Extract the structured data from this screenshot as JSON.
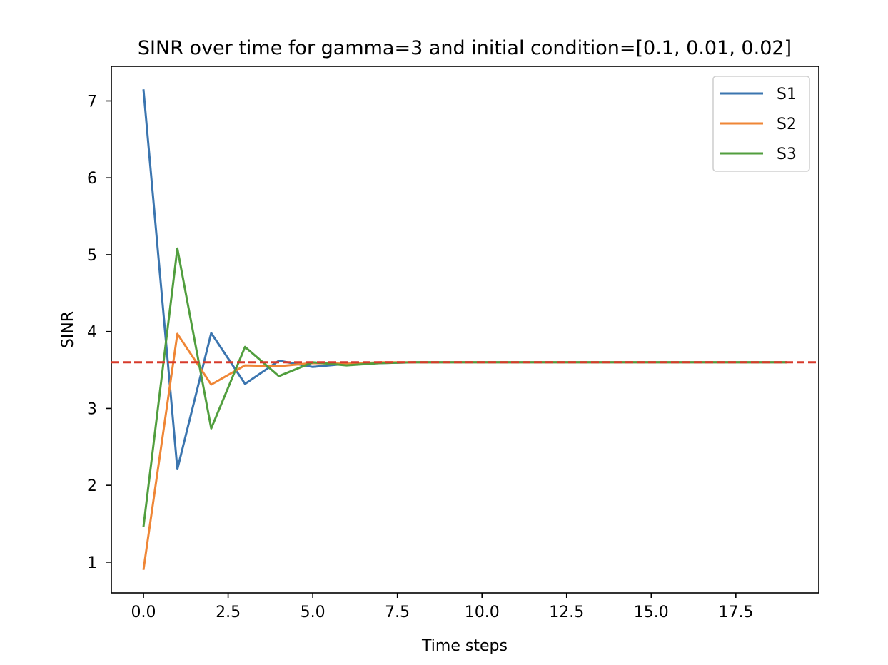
{
  "chart_data": {
    "type": "line",
    "title": "SINR over time for gamma=3 and initial condition=[0.1, 0.01, 0.02]",
    "xlabel": "Time steps",
    "ylabel": "SINR",
    "xlim": [
      -0.95,
      19.95
    ],
    "ylim": [
      0.6,
      7.45
    ],
    "xticks": [
      0.0,
      2.5,
      5.0,
      7.5,
      10.0,
      12.5,
      15.0,
      17.5
    ],
    "xtick_labels": [
      "0.0",
      "2.5",
      "5.0",
      "7.5",
      "10.0",
      "12.5",
      "15.0",
      "17.5"
    ],
    "yticks": [
      1,
      2,
      3,
      4,
      5,
      6,
      7
    ],
    "ytick_labels": [
      "1",
      "2",
      "3",
      "4",
      "5",
      "6",
      "7"
    ],
    "grid": false,
    "legend_position": "top-right",
    "x": [
      0,
      1,
      2,
      3,
      4,
      5,
      6,
      7,
      8,
      9,
      10,
      11,
      12,
      13,
      14,
      15,
      16,
      17,
      18,
      19
    ],
    "series": [
      {
        "name": "S1",
        "color": "#3b75af",
        "values": [
          7.15,
          2.21,
          3.98,
          3.32,
          3.62,
          3.54,
          3.58,
          3.59,
          3.6,
          3.6,
          3.6,
          3.6,
          3.6,
          3.6,
          3.6,
          3.6,
          3.6,
          3.6,
          3.6,
          3.6
        ]
      },
      {
        "name": "S2",
        "color": "#ef8636",
        "values": [
          0.9,
          3.97,
          3.31,
          3.56,
          3.55,
          3.59,
          3.58,
          3.6,
          3.6,
          3.6,
          3.6,
          3.6,
          3.6,
          3.6,
          3.6,
          3.6,
          3.6,
          3.6,
          3.6,
          3.6
        ]
      },
      {
        "name": "S3",
        "color": "#519e3e",
        "values": [
          1.46,
          5.08,
          2.74,
          3.8,
          3.42,
          3.6,
          3.56,
          3.59,
          3.6,
          3.6,
          3.6,
          3.6,
          3.6,
          3.6,
          3.6,
          3.6,
          3.6,
          3.6,
          3.6,
          3.6
        ]
      }
    ],
    "reference_line": {
      "y": 3.6,
      "color": "#d73a2b",
      "style": "dashed"
    }
  }
}
